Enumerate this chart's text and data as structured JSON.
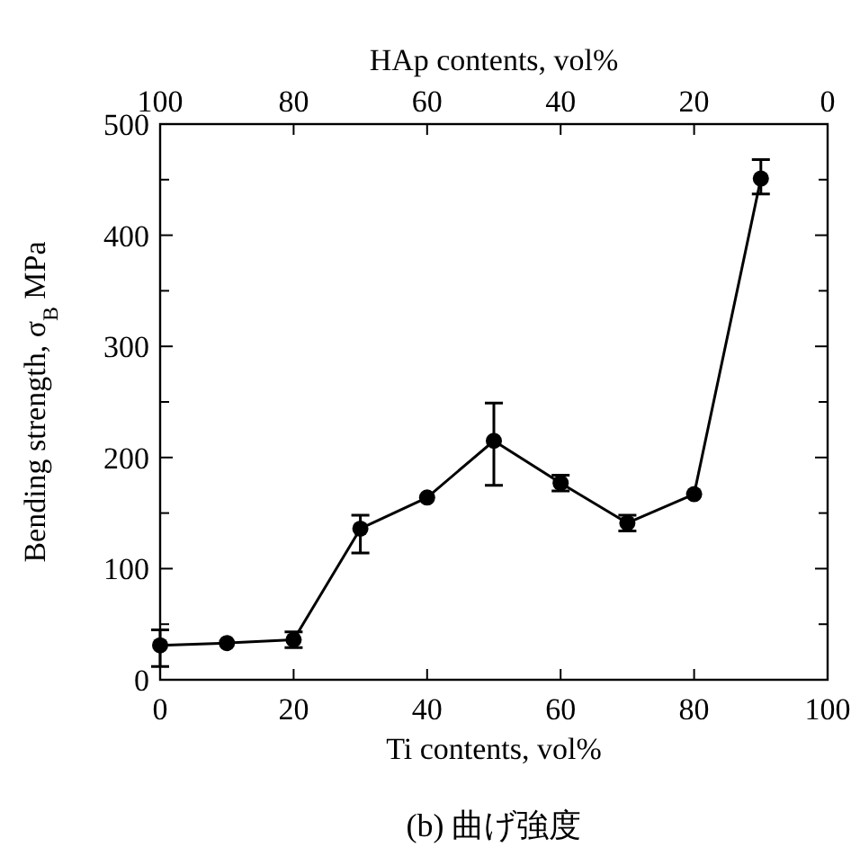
{
  "chart_data": {
    "type": "line",
    "title": "(b) 曲げ強度",
    "xlabel": "Ti contents, vol%",
    "x2label": "HAp contents, vol%",
    "ylabel": "Bending strength, σ$_{B}$ MPa",
    "marker": "circle",
    "line_style": "solid",
    "series": [
      {
        "color": "#000000",
        "x": [
          0,
          10,
          20,
          30,
          40,
          50,
          60,
          70,
          80,
          90
        ],
        "values": [
          31,
          33,
          36,
          136,
          164,
          215,
          177,
          141,
          167,
          451
        ],
        "errors": [
          [
            12,
            45
          ],
          null,
          [
            29,
            43
          ],
          [
            114,
            148
          ],
          null,
          [
            175,
            249
          ],
          [
            170,
            184
          ],
          [
            134,
            148
          ],
          null,
          [
            437,
            468
          ]
        ]
      }
    ],
    "xlim": [
      0,
      100
    ],
    "xticks": [
      0,
      20,
      40,
      60,
      80,
      100
    ],
    "x2lim": [
      100,
      0
    ],
    "x2ticks": [
      100,
      80,
      60,
      40,
      20,
      0
    ],
    "ylim": [
      0,
      500
    ],
    "yticks": [
      0,
      {
        "value": 50,
        "label": null
      },
      100,
      {
        "value": 150,
        "label": null
      },
      200,
      {
        "value": 250,
        "label": null
      },
      300,
      {
        "value": 350,
        "label": null
      },
      400,
      {
        "value": 450,
        "label": null
      },
      500
    ]
  }
}
